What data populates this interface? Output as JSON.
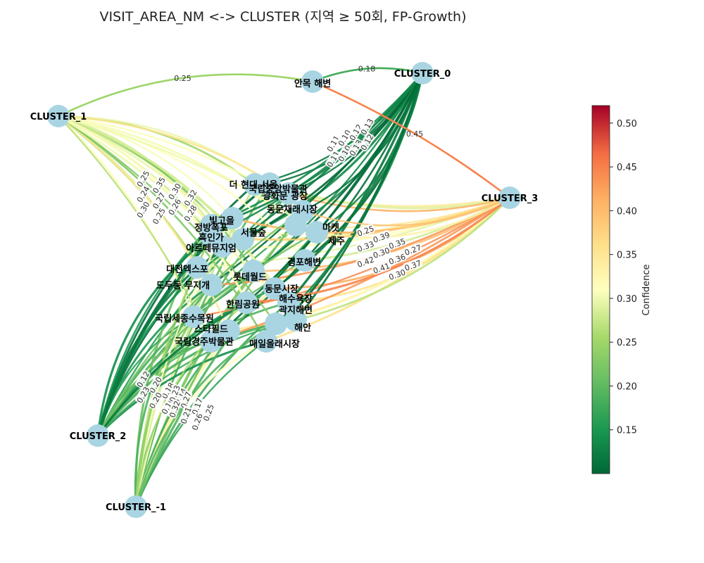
{
  "title": "VISIT_AREA_NM <-> CLUSTER  (지역 ≥ 50회, FP-Growth)",
  "colors": {
    "node_fill": "#a9d5e3",
    "low": "#006837",
    "mid": "#ffffbf",
    "high": "#a50026"
  },
  "colorbar": {
    "label": "Confidence",
    "min": 0.1,
    "max": 0.52,
    "ticks": [
      "0.15",
      "0.20",
      "0.25",
      "0.30",
      "0.35",
      "0.40",
      "0.45",
      "0.50"
    ]
  },
  "clusters": [
    {
      "id": "c0",
      "label": "CLUSTER_0"
    },
    {
      "id": "c1",
      "label": "CLUSTER_1"
    },
    {
      "id": "c2",
      "label": "CLUSTER_2"
    },
    {
      "id": "c3",
      "label": "CLUSTER_3"
    },
    {
      "id": "cm1",
      "label": "CLUSTER_-1"
    }
  ],
  "areas": [
    {
      "id": "a0",
      "label": "안목 해변"
    },
    {
      "id": "a1",
      "label": "더 현대 서울"
    },
    {
      "id": "a2",
      "label": "국립중앙박물관"
    },
    {
      "id": "a3",
      "label": "광화문 광장"
    },
    {
      "id": "a4",
      "label": "동문재래시장"
    },
    {
      "id": "a5",
      "label": "정방폭포"
    },
    {
      "id": "a6",
      "label": "아르떼뮤지엄"
    },
    {
      "id": "a7",
      "label": "서울숲"
    },
    {
      "id": "a8",
      "label": "경포해변"
    },
    {
      "id": "a9",
      "label": "대전엑스포"
    },
    {
      "id": "a10",
      "label": "롯데월드"
    },
    {
      "id": "a11",
      "label": "도두동 무지개"
    },
    {
      "id": "a12",
      "label": "동문시장"
    },
    {
      "id": "a13",
      "label": "해수욕장"
    },
    {
      "id": "a14",
      "label": "국립세종수목원"
    },
    {
      "id": "a15",
      "label": "스타필드"
    },
    {
      "id": "a16",
      "label": "국립경주박물관"
    },
    {
      "id": "a17",
      "label": "매일올래시장"
    },
    {
      "id": "a18",
      "label": "곽지해변"
    },
    {
      "id": "a19",
      "label": "제주"
    },
    {
      "id": "a20",
      "label": "빛고을"
    },
    {
      "id": "a21",
      "label": "흑인가"
    },
    {
      "id": "a22",
      "label": "해안"
    },
    {
      "id": "a23",
      "label": "한림공원"
    },
    {
      "id": "a24",
      "label": "마켓"
    }
  ],
  "labeled_edges": [
    {
      "from": "a0",
      "to": "c0",
      "value": 0.18,
      "text": "0.18"
    },
    {
      "from": "a0",
      "to": "c1",
      "value": 0.25,
      "text": "0.25"
    },
    {
      "from": "a0",
      "to": "c3",
      "value": 0.45,
      "text": "0.45"
    }
  ],
  "edge_labels_cluster1": [
    "0.25",
    "0.35",
    "0.30",
    "0.32",
    "0.24",
    "0.27",
    "0.26",
    "0.28",
    "0.30",
    "0.25"
  ],
  "edge_labels_cluster0": [
    "0.11",
    "0.10",
    "0.12",
    "0.13",
    "0.11",
    "0.10",
    "0.13",
    "0.12"
  ],
  "edge_labels_cluster3": [
    "0.25",
    "0.39",
    "0.35",
    "0.27",
    "0.33",
    "0.30",
    "0.36",
    "0.37",
    "0.42",
    "0.41",
    "0.30"
  ],
  "edge_labels_cluster2": [
    "0.12",
    "0.20",
    "0.18",
    "0.14",
    "0.23",
    "0.20",
    "0.19"
  ],
  "edge_labels_clusterm1": [
    "0.23",
    "0.27",
    "0.17",
    "0.25",
    "0.32",
    "0.21",
    "0.26"
  ]
}
